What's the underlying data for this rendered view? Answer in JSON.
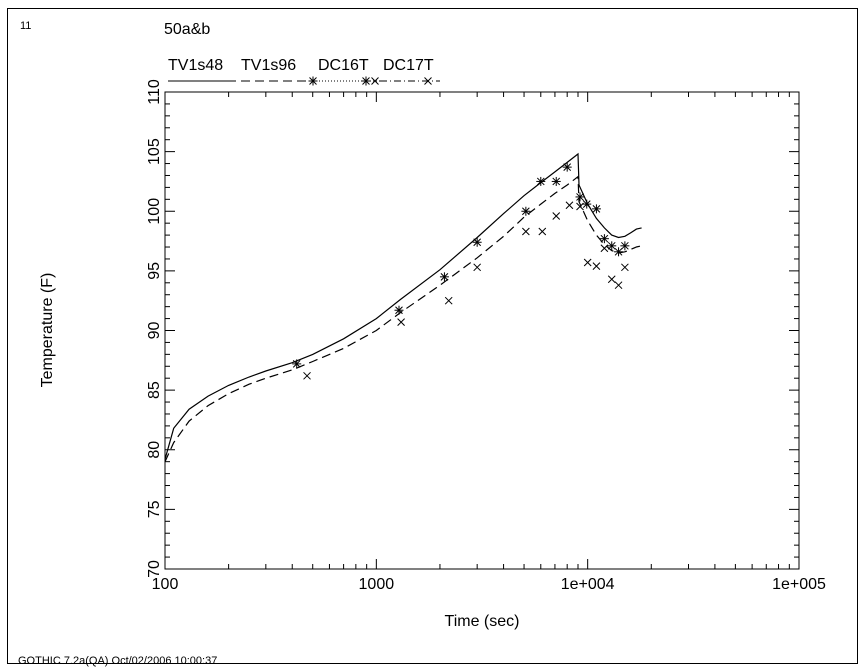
{
  "page_number": "11",
  "footer": "GOTHIC 7.2a(QA) Oct/02/2006 10:00:37",
  "chart_data": {
    "type": "line",
    "title": "50a&b",
    "xlabel": "Time (sec)",
    "ylabel": "Temperature (F)",
    "x_scale": "log",
    "xlim": [
      100,
      100000
    ],
    "ylim": [
      70,
      110
    ],
    "x_ticks": [
      100,
      1000,
      10000,
      100000
    ],
    "x_tick_labels": [
      "100",
      "1000",
      "1e+004",
      "1e+005"
    ],
    "y_ticks": [
      70,
      75,
      80,
      85,
      90,
      95,
      100,
      105,
      110
    ],
    "y_tick_labels": [
      "70",
      "75",
      "80",
      "85",
      "90",
      "95",
      "100",
      "105",
      "110"
    ],
    "grid": false,
    "legend_position": "top",
    "series": [
      {
        "name": "TV1s48",
        "style": "solid",
        "marker": "none",
        "x": [
          100,
          110,
          130,
          160,
          200,
          250,
          300,
          400,
          500,
          700,
          1000,
          1300,
          2000,
          3000,
          4000,
          5000,
          6000,
          7000,
          8000,
          9000,
          9100,
          10000,
          11000,
          12000,
          13000,
          14000,
          15000,
          16000,
          17000,
          18000
        ],
        "y": [
          79.2,
          81.8,
          83.4,
          84.5,
          85.4,
          86.1,
          86.6,
          87.3,
          88.0,
          89.3,
          91.0,
          92.6,
          95.1,
          97.8,
          99.8,
          101.3,
          102.4,
          103.3,
          104.1,
          104.8,
          102.2,
          100.6,
          99.4,
          98.6,
          98.0,
          97.8,
          97.9,
          98.2,
          98.5,
          98.6
        ]
      },
      {
        "name": "TV1s96",
        "style": "dashed",
        "marker": "none",
        "x": [
          100,
          110,
          130,
          160,
          200,
          250,
          300,
          400,
          500,
          700,
          1000,
          1300,
          2000,
          3000,
          4000,
          5000,
          6000,
          7000,
          8000,
          9000,
          9100,
          10000,
          11000,
          12000,
          13000,
          14000,
          15000,
          16000,
          17000,
          18000
        ],
        "y": [
          79.0,
          80.6,
          82.4,
          83.7,
          84.7,
          85.5,
          86.0,
          86.7,
          87.4,
          88.5,
          90.0,
          91.5,
          93.8,
          96.1,
          97.9,
          99.5,
          100.6,
          101.5,
          102.2,
          102.9,
          100.8,
          99.2,
          98.0,
          97.2,
          96.7,
          96.5,
          96.6,
          96.8,
          97.0,
          97.1
        ]
      },
      {
        "name": "DC16T",
        "style": "none",
        "marker": "asterisk",
        "x": [
          420,
          1280,
          2100,
          3000,
          5100,
          6000,
          7100,
          8000,
          9200,
          9900,
          11000,
          12000,
          13000,
          14000,
          15000
        ],
        "y": [
          87.2,
          91.7,
          94.5,
          97.4,
          100.0,
          102.5,
          102.5,
          103.7,
          101.2,
          100.6,
          100.2,
          97.7,
          97.1,
          96.6,
          97.1
        ]
      },
      {
        "name": "DC17T",
        "style": "none",
        "marker": "x",
        "x": [
          470,
          1310,
          2200,
          3000,
          5100,
          6100,
          7100,
          8200,
          9200,
          10000,
          11000,
          12000,
          13000,
          14000,
          15000
        ],
        "y": [
          86.2,
          90.7,
          92.5,
          95.3,
          98.3,
          98.3,
          99.6,
          100.5,
          100.4,
          95.7,
          95.4,
          96.9,
          94.3,
          93.8,
          95.3
        ]
      }
    ]
  }
}
